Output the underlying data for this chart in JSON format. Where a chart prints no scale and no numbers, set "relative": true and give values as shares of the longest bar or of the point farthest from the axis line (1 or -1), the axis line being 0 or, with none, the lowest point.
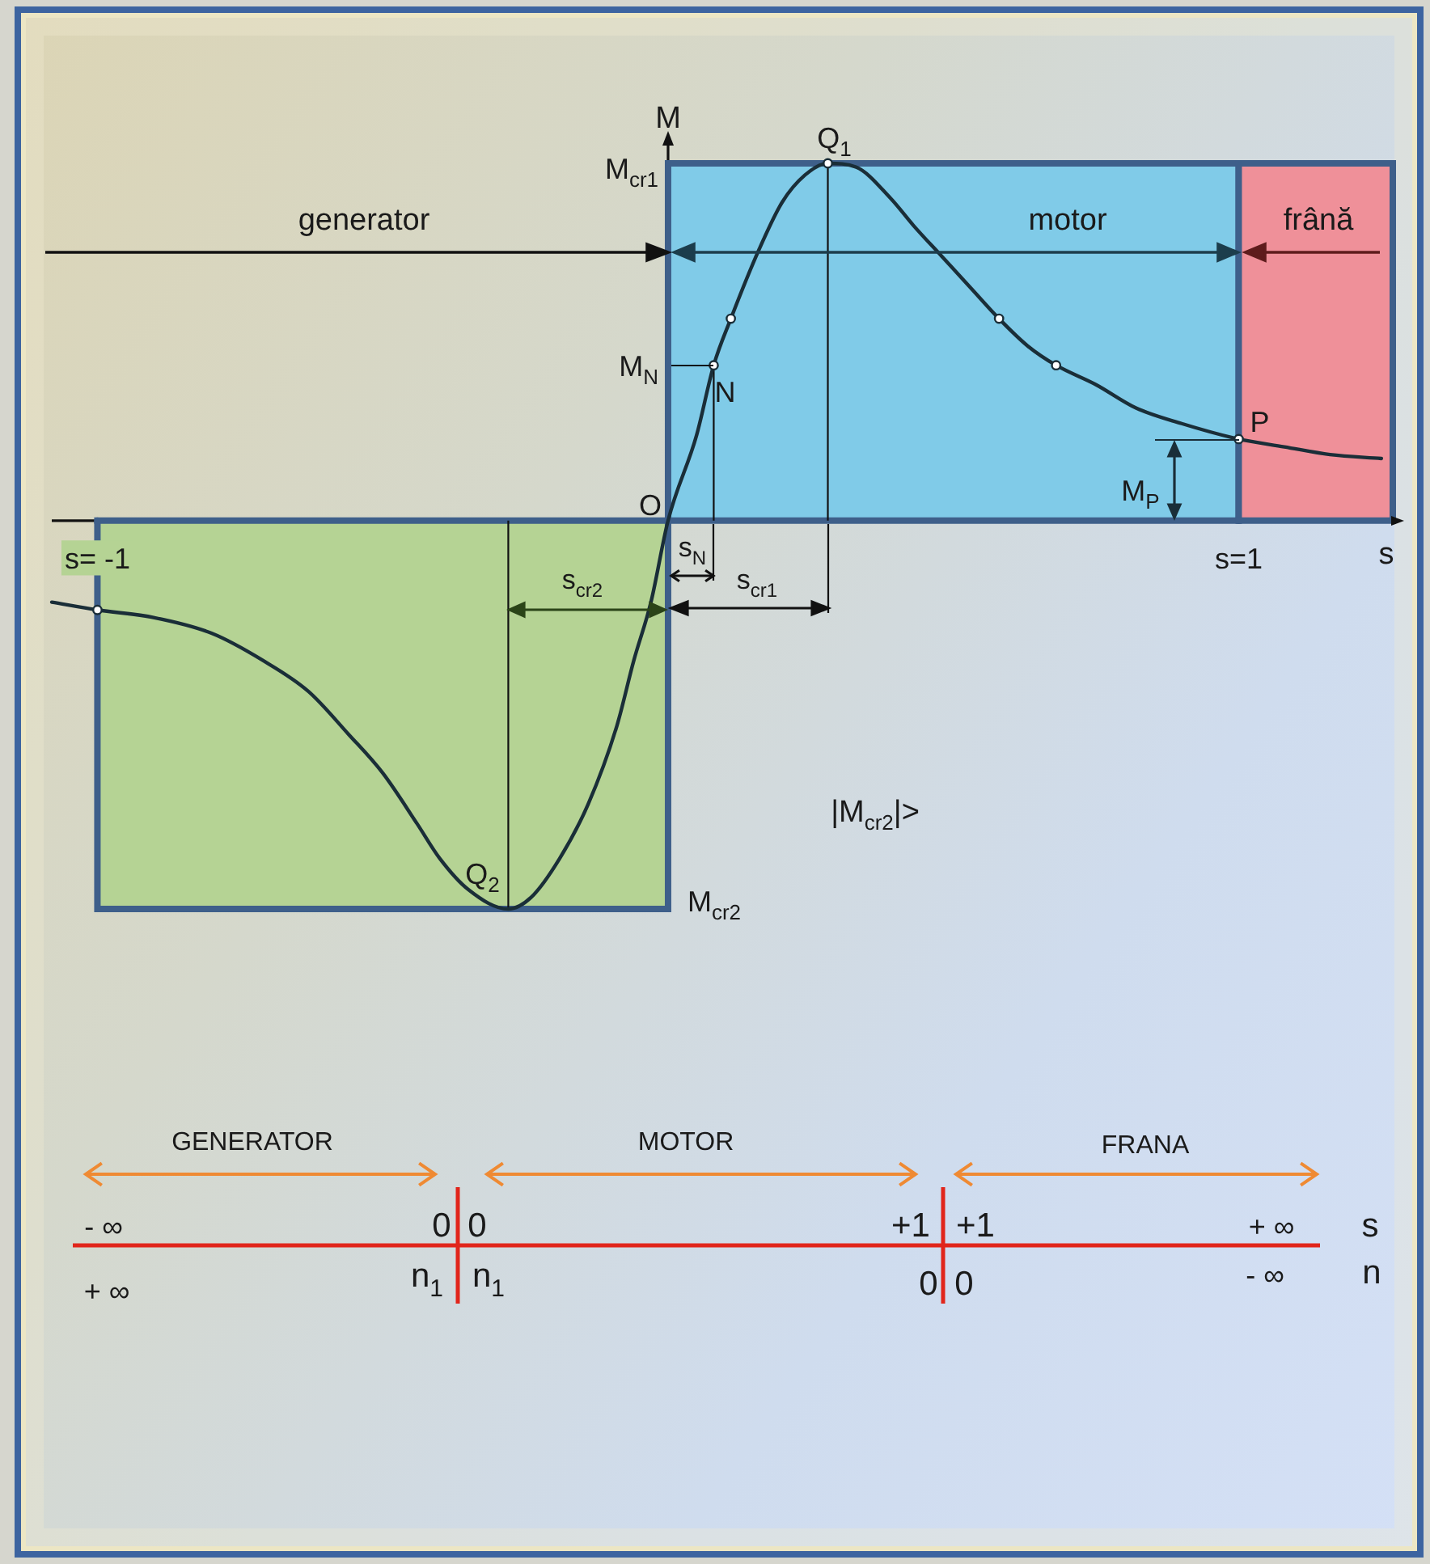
{
  "chart_data": {
    "type": "line",
    "relative": true,
    "xlabel": "s",
    "ylabel": "M",
    "x": [
      -1.08,
      -1,
      -0.9,
      -0.8,
      -0.71,
      -0.63,
      -0.56,
      -0.5,
      -0.44,
      -0.4,
      -0.35,
      -0.28,
      -0.24,
      -0.19,
      -0.14,
      -0.09,
      -0.06,
      -0.03,
      0,
      0.05,
      0.08,
      0.11,
      0.16,
      0.2,
      0.24,
      0.28,
      0.33,
      0.39,
      0.43,
      0.48,
      0.53,
      0.58,
      0.63,
      0.68,
      0.75,
      0.82,
      0.9,
      1,
      1.08,
      1.16,
      1.25
    ],
    "series": [
      {
        "color": "#1a2e38",
        "values": [
          -0.21,
          -0.23,
          -0.25,
          -0.29,
          -0.36,
          -0.44,
          -0.55,
          -0.65,
          -0.78,
          -0.87,
          -0.95,
          -1,
          -0.97,
          -0.87,
          -0.73,
          -0.53,
          -0.36,
          -0.21,
          0,
          0.22,
          0.4,
          0.52,
          0.7,
          0.82,
          0.89,
          0.92,
          0.91,
          0.83,
          0.76,
          0.68,
          0.6,
          0.52,
          0.45,
          0.4,
          0.35,
          0.29,
          0.25,
          0.21,
          0.19,
          0.17,
          0.16
        ]
      },
      {
        "type": "scatter",
        "x": [
          -1,
          0.08,
          0.11,
          0.28,
          0.58,
          0.68,
          1
        ],
        "values": [
          -0.23,
          0.4,
          0.52,
          0.92,
          0.52,
          0.4,
          0.21
        ],
        "color": "#1a2e38",
        "marker": "circle"
      },
      {
        "type": "area",
        "x": [
          -1,
          -1,
          0,
          0
        ],
        "values": [
          0,
          -1,
          -1,
          0
        ],
        "color": "#b5d394"
      },
      {
        "type": "area",
        "x": [
          0,
          0,
          1,
          1
        ],
        "values": [
          0,
          0.92,
          0.92,
          0
        ],
        "color": "#80cbe8"
      },
      {
        "type": "area",
        "x": [
          1,
          1,
          1.27,
          1.27
        ],
        "values": [
          0,
          0.92,
          0.92,
          0
        ],
        "color": "#ef9099"
      }
    ],
    "xlim": [
      -1.08,
      1.27
    ],
    "xticks": [
      {
        "value": -1,
        "label": "s= -1"
      },
      {
        "value": 1,
        "label": "s=1"
      }
    ],
    "ref_lines": [
      {
        "axis": "x",
        "value": 0.28
      },
      {
        "axis": "x",
        "value": -0.28
      },
      {
        "axis": "x",
        "value": 0.08
      }
    ],
    "annotations": [
      {
        "text": "Q$_{1}$",
        "x": 0.28,
        "y": 0.92
      },
      "M$_{cr1}$",
      "M$_{N}$",
      {
        "text": "N",
        "x": 0.08,
        "y": 0.4
      },
      {
        "text": "P",
        "x": 1,
        "y": 0.21
      },
      {
        "text": "Q$_{2}$",
        "x": -0.28,
        "y": -1
      },
      {
        "text": "M$_{cr2}$",
        "x": 0,
        "y": -1
      },
      {
        "text": "O",
        "x": 0,
        "y": 0
      },
      "M$_{P}$",
      "s$_{N}$",
      "s$_{cr1}$",
      "s$_{cr2}$",
      "|M$_{cr2}$|>",
      "generator",
      "motor",
      "frână",
      "GENERATOR",
      "MOTOR",
      "FRANA",
      "- ∞",
      "0",
      "0",
      "+1",
      "+1",
      "+ ∞",
      "s",
      "n$_{1}$",
      "n$_{1}$",
      "0",
      "0",
      "- ∞",
      "n",
      "+ ∞"
    ]
  }
}
